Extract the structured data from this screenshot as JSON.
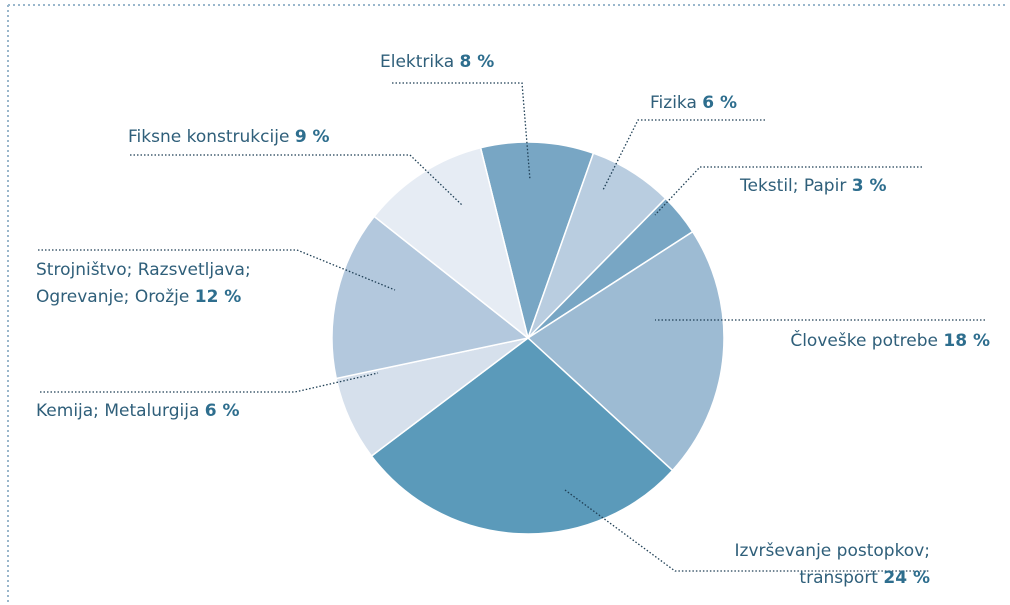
{
  "chart_data": {
    "type": "pie",
    "categories": [
      "Elektrika",
      "Fizika",
      "Tekstil; Papir",
      "Človeške potrebe",
      "Izvrševanje postopkov; transport",
      "Kemija; Metalurgija",
      "Strojništvo; Razsvetljava; Ogrevanje; Orožje",
      "Fiksne konstrukcije"
    ],
    "values": [
      8,
      6,
      3,
      18,
      24,
      6,
      12,
      9
    ],
    "value_labels": [
      "8 %",
      "6 %",
      "3 %",
      "18 %",
      "24 %",
      "6 %",
      "12 %",
      "9 %"
    ],
    "colors": [
      "#78a6c4",
      "#b9cde0",
      "#78a6c4",
      "#9dbbd3",
      "#5b9aba",
      "#d6e0ec",
      "#b3c8dd",
      "#e6ecf4"
    ]
  }
}
